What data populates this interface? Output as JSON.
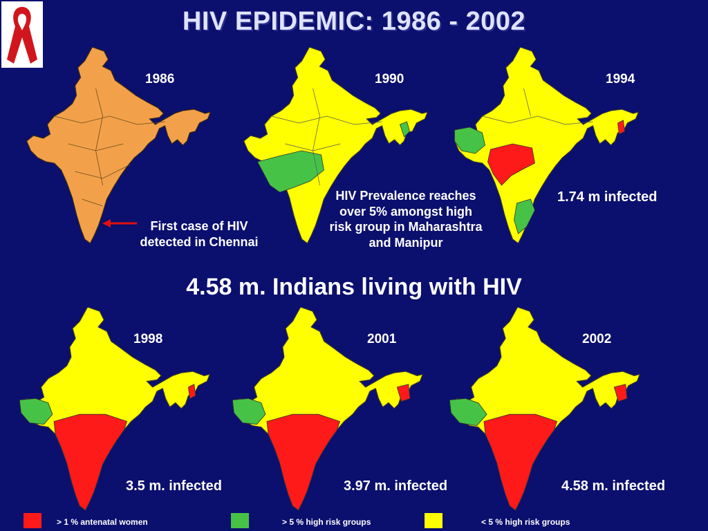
{
  "title": "HIV EPIDEMIC: 1986 - 2002",
  "subtitle": "4.58 m. Indians living with HIV",
  "colors": {
    "background": "#0b0f6e",
    "orange": "#f2a14a",
    "yellow": "#ffff00",
    "green": "#46c346",
    "red": "#ff1a1a",
    "border": "#333333"
  },
  "maps": [
    {
      "year": "1986",
      "base": "orange",
      "regions": []
    },
    {
      "year": "1990",
      "base": "yellow",
      "regions": [
        "green-maharashtra",
        "green-manipur"
      ]
    },
    {
      "year": "1994",
      "base": "yellow",
      "regions": [
        "green-gujarat",
        "red-maharashtra",
        "green-tamilnadu",
        "red-manipur"
      ]
    },
    {
      "year": "1998",
      "base": "yellow",
      "regions": [
        "green-gujarat",
        "red-south",
        "red-manipur"
      ]
    },
    {
      "year": "2001",
      "base": "yellow",
      "regions": [
        "green-gujarat",
        "red-south",
        "red-manipur"
      ]
    },
    {
      "year": "2002",
      "base": "yellow",
      "regions": [
        "green-gujarat",
        "red-south",
        "red-manipur"
      ]
    }
  ],
  "notes": {
    "first_case": "First case of HIV detected in Chennai",
    "prevalence": "HIV Prevalence reaches over 5% amongst high risk group in Maharashtra and Manipur"
  },
  "infected": {
    "y1994": "1.74 m infected",
    "y1998": "3.5 m. infected",
    "y2001": "3.97 m. infected",
    "y2002": "4.58 m. infected"
  },
  "legend": [
    {
      "color": "#ff1a1a",
      "label": "> 1 % antenatal women"
    },
    {
      "color": "#46c346",
      "label": "> 5 % high risk groups"
    },
    {
      "color": "#ffff00",
      "label": "< 5 % high risk groups"
    }
  ]
}
